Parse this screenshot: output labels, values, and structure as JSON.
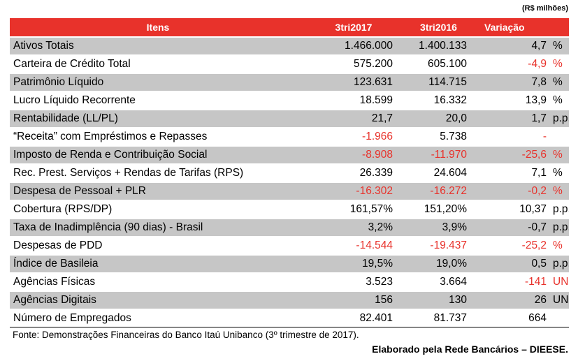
{
  "unit_note": "(R$ milhões)",
  "headers": {
    "item": "Itens",
    "y2017": "3tri2017",
    "y2016": "3tri2016",
    "variation": "Variação"
  },
  "rows": [
    {
      "item": "Ativos Totais",
      "y2017": "1.466.000",
      "y2016": "1.400.133",
      "variation": "4,7",
      "unit": "%",
      "neg2017": false,
      "neg2016": false,
      "negVar": false
    },
    {
      "item": "Carteira de Crédito Total",
      "y2017": "575.200",
      "y2016": "605.100",
      "variation": "-4,9",
      "unit": "%",
      "neg2017": false,
      "neg2016": false,
      "negVar": true
    },
    {
      "item": "Patrimônio Líquido",
      "y2017": "123.631",
      "y2016": "114.715",
      "variation": "7,8",
      "unit": "%",
      "neg2017": false,
      "neg2016": false,
      "negVar": false
    },
    {
      "item": "Lucro Líquido Recorrente",
      "y2017": "18.599",
      "y2016": "16.332",
      "variation": "13,9",
      "unit": "%",
      "neg2017": false,
      "neg2016": false,
      "negVar": false
    },
    {
      "item": "Rentabilidade (LL/PL)",
      "y2017": "21,7",
      "y2016": "20,0",
      "variation": "1,7",
      "unit": "p.p.",
      "neg2017": false,
      "neg2016": false,
      "negVar": false
    },
    {
      "item": "“Receita” com Empréstimos e Repasses",
      "y2017": "-1.966",
      "y2016": "5.738",
      "variation": "-",
      "unit": "",
      "neg2017": true,
      "neg2016": false,
      "negVar": true
    },
    {
      "item": "Imposto de Renda e Contribuição Social",
      "y2017": "-8.908",
      "y2016": "-11.970",
      "variation": "-25,6",
      "unit": "%",
      "neg2017": true,
      "neg2016": true,
      "negVar": true
    },
    {
      "item": "Rec. Prest. Serviços + Rendas de Tarifas (RPS)",
      "y2017": "26.339",
      "y2016": "24.604",
      "variation": "7,1",
      "unit": "%",
      "neg2017": false,
      "neg2016": false,
      "negVar": false
    },
    {
      "item": "Despesa de Pessoal + PLR",
      "y2017": "-16.302",
      "y2016": "-16.272",
      "variation": "-0,2",
      "unit": "%",
      "neg2017": true,
      "neg2016": true,
      "negVar": true
    },
    {
      "item": "Cobertura (RPS/DP)",
      "y2017": "161,57%",
      "y2016": "151,20%",
      "variation": "10,37",
      "unit": "p.p.",
      "neg2017": false,
      "neg2016": false,
      "negVar": false
    },
    {
      "item": "Taxa de Inadimplência (90 dias) - Brasil",
      "y2017": "3,2%",
      "y2016": "3,9%",
      "variation": "-0,7",
      "unit": "p.p.",
      "neg2017": false,
      "neg2016": false,
      "negVar": false
    },
    {
      "item": "Despesas de PDD",
      "y2017": "-14.544",
      "y2016": "-19.437",
      "variation": "-25,2",
      "unit": "%",
      "neg2017": true,
      "neg2016": true,
      "negVar": true
    },
    {
      "item": "Índice de Basileia",
      "y2017": "19,5%",
      "y2016": "19,0%",
      "variation": "0,5",
      "unit": "p.p.",
      "neg2017": false,
      "neg2016": false,
      "negVar": false
    },
    {
      "item": "Agências Físicas",
      "y2017": "3.523",
      "y2016": "3.664",
      "variation": "-141",
      "unit": "UN",
      "neg2017": false,
      "neg2016": false,
      "negVar": true
    },
    {
      "item": "Agências Digitais",
      "y2017": "156",
      "y2016": "130",
      "variation": "26",
      "unit": "UN",
      "neg2017": false,
      "neg2016": false,
      "negVar": false
    },
    {
      "item": "Número de Empregados",
      "y2017": "82.401",
      "y2016": "81.737",
      "variation": "664",
      "unit": "",
      "neg2017": false,
      "neg2016": false,
      "negVar": false
    }
  ],
  "source": "Fonte: Demonstrações Financeiras do Banco Itaú Unibanco (3º trimestre de 2017).",
  "credit": "Elaborado pela Rede Bancários – DIEESE.",
  "colors": {
    "header_bg": "#e8322b",
    "negative": "#e8322b",
    "stripe": "#c6c6c6"
  }
}
